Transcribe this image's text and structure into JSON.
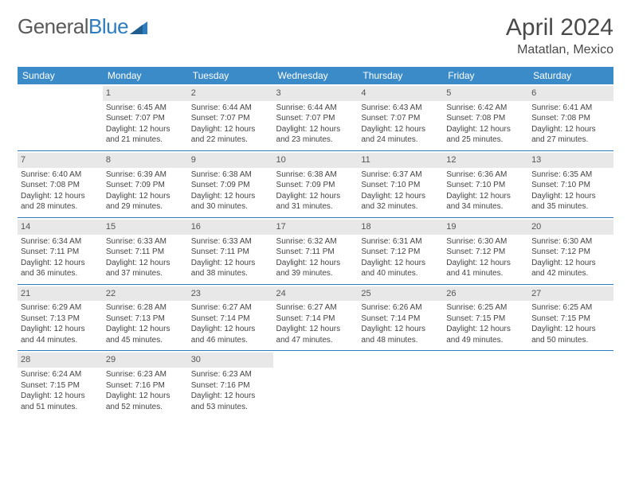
{
  "logo": {
    "part1": "General",
    "part2": "Blue"
  },
  "header": {
    "month": "April 2024",
    "location": "Matatlan, Mexico"
  },
  "colors": {
    "header_bg": "#3b8bc9",
    "header_text": "#ffffff",
    "row_divider": "#2d7cc0",
    "daynum_bg": "#e8e8e8",
    "text": "#444444",
    "logo_gray": "#5a5a5a",
    "logo_blue": "#2d7cc0"
  },
  "weekdays": [
    "Sunday",
    "Monday",
    "Tuesday",
    "Wednesday",
    "Thursday",
    "Friday",
    "Saturday"
  ],
  "weeks": [
    [
      {
        "day": "",
        "lines": []
      },
      {
        "day": "1",
        "lines": [
          "Sunrise: 6:45 AM",
          "Sunset: 7:07 PM",
          "Daylight: 12 hours",
          "and 21 minutes."
        ]
      },
      {
        "day": "2",
        "lines": [
          "Sunrise: 6:44 AM",
          "Sunset: 7:07 PM",
          "Daylight: 12 hours",
          "and 22 minutes."
        ]
      },
      {
        "day": "3",
        "lines": [
          "Sunrise: 6:44 AM",
          "Sunset: 7:07 PM",
          "Daylight: 12 hours",
          "and 23 minutes."
        ]
      },
      {
        "day": "4",
        "lines": [
          "Sunrise: 6:43 AM",
          "Sunset: 7:07 PM",
          "Daylight: 12 hours",
          "and 24 minutes."
        ]
      },
      {
        "day": "5",
        "lines": [
          "Sunrise: 6:42 AM",
          "Sunset: 7:08 PM",
          "Daylight: 12 hours",
          "and 25 minutes."
        ]
      },
      {
        "day": "6",
        "lines": [
          "Sunrise: 6:41 AM",
          "Sunset: 7:08 PM",
          "Daylight: 12 hours",
          "and 27 minutes."
        ]
      }
    ],
    [
      {
        "day": "7",
        "lines": [
          "Sunrise: 6:40 AM",
          "Sunset: 7:08 PM",
          "Daylight: 12 hours",
          "and 28 minutes."
        ]
      },
      {
        "day": "8",
        "lines": [
          "Sunrise: 6:39 AM",
          "Sunset: 7:09 PM",
          "Daylight: 12 hours",
          "and 29 minutes."
        ]
      },
      {
        "day": "9",
        "lines": [
          "Sunrise: 6:38 AM",
          "Sunset: 7:09 PM",
          "Daylight: 12 hours",
          "and 30 minutes."
        ]
      },
      {
        "day": "10",
        "lines": [
          "Sunrise: 6:38 AM",
          "Sunset: 7:09 PM",
          "Daylight: 12 hours",
          "and 31 minutes."
        ]
      },
      {
        "day": "11",
        "lines": [
          "Sunrise: 6:37 AM",
          "Sunset: 7:10 PM",
          "Daylight: 12 hours",
          "and 32 minutes."
        ]
      },
      {
        "day": "12",
        "lines": [
          "Sunrise: 6:36 AM",
          "Sunset: 7:10 PM",
          "Daylight: 12 hours",
          "and 34 minutes."
        ]
      },
      {
        "day": "13",
        "lines": [
          "Sunrise: 6:35 AM",
          "Sunset: 7:10 PM",
          "Daylight: 12 hours",
          "and 35 minutes."
        ]
      }
    ],
    [
      {
        "day": "14",
        "lines": [
          "Sunrise: 6:34 AM",
          "Sunset: 7:11 PM",
          "Daylight: 12 hours",
          "and 36 minutes."
        ]
      },
      {
        "day": "15",
        "lines": [
          "Sunrise: 6:33 AM",
          "Sunset: 7:11 PM",
          "Daylight: 12 hours",
          "and 37 minutes."
        ]
      },
      {
        "day": "16",
        "lines": [
          "Sunrise: 6:33 AM",
          "Sunset: 7:11 PM",
          "Daylight: 12 hours",
          "and 38 minutes."
        ]
      },
      {
        "day": "17",
        "lines": [
          "Sunrise: 6:32 AM",
          "Sunset: 7:11 PM",
          "Daylight: 12 hours",
          "and 39 minutes."
        ]
      },
      {
        "day": "18",
        "lines": [
          "Sunrise: 6:31 AM",
          "Sunset: 7:12 PM",
          "Daylight: 12 hours",
          "and 40 minutes."
        ]
      },
      {
        "day": "19",
        "lines": [
          "Sunrise: 6:30 AM",
          "Sunset: 7:12 PM",
          "Daylight: 12 hours",
          "and 41 minutes."
        ]
      },
      {
        "day": "20",
        "lines": [
          "Sunrise: 6:30 AM",
          "Sunset: 7:12 PM",
          "Daylight: 12 hours",
          "and 42 minutes."
        ]
      }
    ],
    [
      {
        "day": "21",
        "lines": [
          "Sunrise: 6:29 AM",
          "Sunset: 7:13 PM",
          "Daylight: 12 hours",
          "and 44 minutes."
        ]
      },
      {
        "day": "22",
        "lines": [
          "Sunrise: 6:28 AM",
          "Sunset: 7:13 PM",
          "Daylight: 12 hours",
          "and 45 minutes."
        ]
      },
      {
        "day": "23",
        "lines": [
          "Sunrise: 6:27 AM",
          "Sunset: 7:14 PM",
          "Daylight: 12 hours",
          "and 46 minutes."
        ]
      },
      {
        "day": "24",
        "lines": [
          "Sunrise: 6:27 AM",
          "Sunset: 7:14 PM",
          "Daylight: 12 hours",
          "and 47 minutes."
        ]
      },
      {
        "day": "25",
        "lines": [
          "Sunrise: 6:26 AM",
          "Sunset: 7:14 PM",
          "Daylight: 12 hours",
          "and 48 minutes."
        ]
      },
      {
        "day": "26",
        "lines": [
          "Sunrise: 6:25 AM",
          "Sunset: 7:15 PM",
          "Daylight: 12 hours",
          "and 49 minutes."
        ]
      },
      {
        "day": "27",
        "lines": [
          "Sunrise: 6:25 AM",
          "Sunset: 7:15 PM",
          "Daylight: 12 hours",
          "and 50 minutes."
        ]
      }
    ],
    [
      {
        "day": "28",
        "lines": [
          "Sunrise: 6:24 AM",
          "Sunset: 7:15 PM",
          "Daylight: 12 hours",
          "and 51 minutes."
        ]
      },
      {
        "day": "29",
        "lines": [
          "Sunrise: 6:23 AM",
          "Sunset: 7:16 PM",
          "Daylight: 12 hours",
          "and 52 minutes."
        ]
      },
      {
        "day": "30",
        "lines": [
          "Sunrise: 6:23 AM",
          "Sunset: 7:16 PM",
          "Daylight: 12 hours",
          "and 53 minutes."
        ]
      },
      {
        "day": "",
        "lines": []
      },
      {
        "day": "",
        "lines": []
      },
      {
        "day": "",
        "lines": []
      },
      {
        "day": "",
        "lines": []
      }
    ]
  ]
}
